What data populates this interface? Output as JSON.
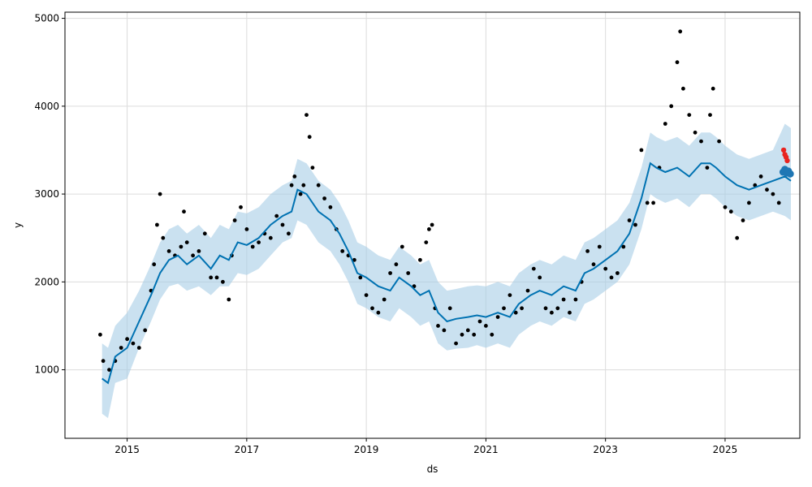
{
  "chart_data": {
    "type": "scatter",
    "title": "",
    "xlabel": "ds",
    "ylabel": "y",
    "xlim": [
      2013.96,
      2026.25
    ],
    "ylim": [
      220,
      5070
    ],
    "x_ticks": [
      2015,
      2017,
      2019,
      2021,
      2023,
      2025
    ],
    "y_ticks": [
      1000,
      2000,
      3000,
      4000,
      5000
    ],
    "grid": true,
    "legend": "none",
    "colors": {
      "observed": "#000000",
      "forecast": "#0072B2",
      "interval": "#a6cde6",
      "future_points": "#e8231f",
      "future_forecast": "#1f77b4",
      "grid": "#dcdcdc"
    },
    "forecast_line": {
      "x": [
        2014.58,
        2014.68,
        2014.8,
        2015.0,
        2015.2,
        2015.4,
        2015.55,
        2015.7,
        2015.85,
        2016.0,
        2016.2,
        2016.4,
        2016.55,
        2016.7,
        2016.85,
        2017.0,
        2017.2,
        2017.4,
        2017.6,
        2017.75,
        2017.85,
        2018.0,
        2018.2,
        2018.4,
        2018.55,
        2018.7,
        2018.85,
        2019.0,
        2019.2,
        2019.4,
        2019.55,
        2019.75,
        2019.9,
        2020.05,
        2020.2,
        2020.35,
        2020.5,
        2020.7,
        2020.85,
        2021.0,
        2021.2,
        2021.4,
        2021.55,
        2021.75,
        2021.9,
        2022.1,
        2022.3,
        2022.5,
        2022.65,
        2022.8,
        2023.0,
        2023.2,
        2023.4,
        2023.6,
        2023.75,
        2023.85,
        2024.0,
        2024.2,
        2024.4,
        2024.6,
        2024.75,
        2024.85,
        2025.0,
        2025.2,
        2025.4,
        2025.6,
        2025.8,
        2026.0,
        2026.1
      ],
      "y": [
        900,
        850,
        1150,
        1250,
        1550,
        1850,
        2100,
        2250,
        2300,
        2200,
        2300,
        2150,
        2300,
        2250,
        2450,
        2420,
        2500,
        2650,
        2750,
        2800,
        3050,
        3000,
        2800,
        2700,
        2550,
        2350,
        2100,
        2050,
        1950,
        1900,
        2050,
        1950,
        1850,
        1900,
        1650,
        1550,
        1580,
        1600,
        1620,
        1600,
        1650,
        1600,
        1750,
        1850,
        1900,
        1850,
        1950,
        1900,
        2100,
        2150,
        2250,
        2350,
        2550,
        2950,
        3350,
        3300,
        3250,
        3300,
        3200,
        3350,
        3350,
        3300,
        3200,
        3100,
        3050,
        3100,
        3150,
        3200,
        3150
      ],
      "lower": [
        500,
        450,
        850,
        900,
        1250,
        1550,
        1800,
        1950,
        1980,
        1900,
        1950,
        1850,
        1950,
        1950,
        2100,
        2080,
        2150,
        2300,
        2450,
        2500,
        2700,
        2650,
        2450,
        2350,
        2200,
        2000,
        1750,
        1700,
        1600,
        1550,
        1700,
        1600,
        1500,
        1550,
        1300,
        1220,
        1240,
        1250,
        1280,
        1250,
        1300,
        1250,
        1400,
        1500,
        1550,
        1500,
        1600,
        1550,
        1750,
        1800,
        1900,
        2000,
        2200,
        2600,
        3000,
        2950,
        2900,
        2950,
        2850,
        3000,
        3000,
        2950,
        2850,
        2750,
        2700,
        2750,
        2800,
        2750,
        2700
      ],
      "upper": [
        1300,
        1250,
        1500,
        1650,
        1900,
        2200,
        2450,
        2600,
        2650,
        2550,
        2650,
        2500,
        2650,
        2600,
        2800,
        2780,
        2850,
        3000,
        3100,
        3150,
        3400,
        3350,
        3150,
        3050,
        2900,
        2700,
        2450,
        2400,
        2300,
        2250,
        2400,
        2300,
        2200,
        2250,
        2000,
        1900,
        1920,
        1950,
        1960,
        1950,
        2000,
        1950,
        2100,
        2200,
        2250,
        2200,
        2300,
        2250,
        2450,
        2500,
        2600,
        2700,
        2900,
        3300,
        3700,
        3650,
        3600,
        3650,
        3550,
        3700,
        3700,
        3650,
        3550,
        3450,
        3400,
        3450,
        3500,
        3800,
        3750
      ]
    },
    "observed_points": {
      "x": [
        2014.55,
        2014.6,
        2014.7,
        2014.8,
        2014.9,
        2015.0,
        2015.1,
        2015.2,
        2015.3,
        2015.4,
        2015.45,
        2015.5,
        2015.55,
        2015.6,
        2015.7,
        2015.8,
        2015.9,
        2015.95,
        2016.0,
        2016.1,
        2016.2,
        2016.3,
        2016.4,
        2016.5,
        2016.6,
        2016.7,
        2016.75,
        2016.8,
        2016.9,
        2017.0,
        2017.1,
        2017.2,
        2017.3,
        2017.4,
        2017.5,
        2017.6,
        2017.7,
        2017.75,
        2017.8,
        2017.9,
        2017.95,
        2018.0,
        2018.05,
        2018.1,
        2018.2,
        2018.3,
        2018.4,
        2018.5,
        2018.6,
        2018.7,
        2018.8,
        2018.9,
        2019.0,
        2019.1,
        2019.2,
        2019.3,
        2019.4,
        2019.5,
        2019.6,
        2019.7,
        2019.8,
        2019.9,
        2020.0,
        2020.05,
        2020.1,
        2020.15,
        2020.2,
        2020.3,
        2020.4,
        2020.5,
        2020.6,
        2020.7,
        2020.8,
        2020.9,
        2021.0,
        2021.1,
        2021.2,
        2021.3,
        2021.4,
        2021.5,
        2021.6,
        2021.7,
        2021.8,
        2021.9,
        2022.0,
        2022.1,
        2022.2,
        2022.3,
        2022.4,
        2022.5,
        2022.6,
        2022.7,
        2022.8,
        2022.9,
        2023.0,
        2023.1,
        2023.2,
        2023.3,
        2023.4,
        2023.5,
        2023.6,
        2023.7,
        2023.8,
        2023.9,
        2024.0,
        2024.1,
        2024.2,
        2024.25,
        2024.3,
        2024.4,
        2024.5,
        2024.6,
        2024.7,
        2024.75,
        2024.8,
        2024.9,
        2025.0,
        2025.1,
        2025.2,
        2025.3,
        2025.4,
        2025.5,
        2025.6,
        2025.7,
        2025.8,
        2025.9
      ],
      "y": [
        1400,
        1100,
        1000,
        1100,
        1250,
        1350,
        1300,
        1250,
        1450,
        1900,
        2200,
        2650,
        3000,
        2500,
        2350,
        2300,
        2400,
        2800,
        2450,
        2300,
        2350,
        2550,
        2050,
        2050,
        2000,
        1800,
        2300,
        2700,
        2850,
        2600,
        2400,
        2450,
        2550,
        2500,
        2750,
        2650,
        2550,
        3100,
        3200,
        3000,
        3100,
        3900,
        3650,
        3300,
        3100,
        2950,
        2850,
        2600,
        2350,
        2300,
        2250,
        2050,
        1850,
        1700,
        1650,
        1800,
        2100,
        2200,
        2400,
        2100,
        1950,
        2250,
        2450,
        2600,
        2650,
        1700,
        1500,
        1450,
        1700,
        1300,
        1400,
        1450,
        1400,
        1550,
        1500,
        1400,
        1600,
        1700,
        1850,
        1650,
        1700,
        1900,
        2150,
        2050,
        1700,
        1650,
        1700,
        1800,
        1650,
        1800,
        2000,
        2350,
        2200,
        2400,
        2150,
        2050,
        2100,
        2400,
        2700,
        2650,
        3500,
        2900,
        2900,
        3300,
        3800,
        4000,
        4500,
        4850,
        4200,
        3900,
        3700,
        3600,
        3300,
        3900,
        4200,
        3600,
        2850,
        2800,
        2500,
        2700,
        2900,
        3100,
        3200,
        3050,
        3000,
        2900
      ]
    },
    "future_points": {
      "x": [
        2025.98,
        2026.0,
        2026.02,
        2026.04
      ],
      "y": [
        3500,
        3450,
        3420,
        3380
      ]
    },
    "future_forecast": {
      "x": [
        2025.97,
        2026.0,
        2026.03,
        2026.06,
        2026.09
      ],
      "y": [
        3250,
        3280,
        3240,
        3260,
        3230
      ]
    }
  }
}
